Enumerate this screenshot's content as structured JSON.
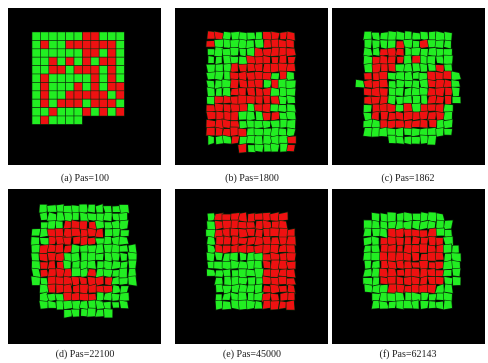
{
  "panels": [
    {
      "caption": "(a) Pas=100"
    },
    {
      "caption": "(b) Pas=1800"
    },
    {
      "caption": "(c) Pas=1862"
    },
    {
      "caption": "(d) Pas=22100"
    },
    {
      "caption": "(e) Pas=45000"
    },
    {
      "caption": "(f) Pas=62143"
    }
  ],
  "colors": {
    "background": "#000000",
    "green": "#22ee22",
    "red": "#ee1111"
  }
}
